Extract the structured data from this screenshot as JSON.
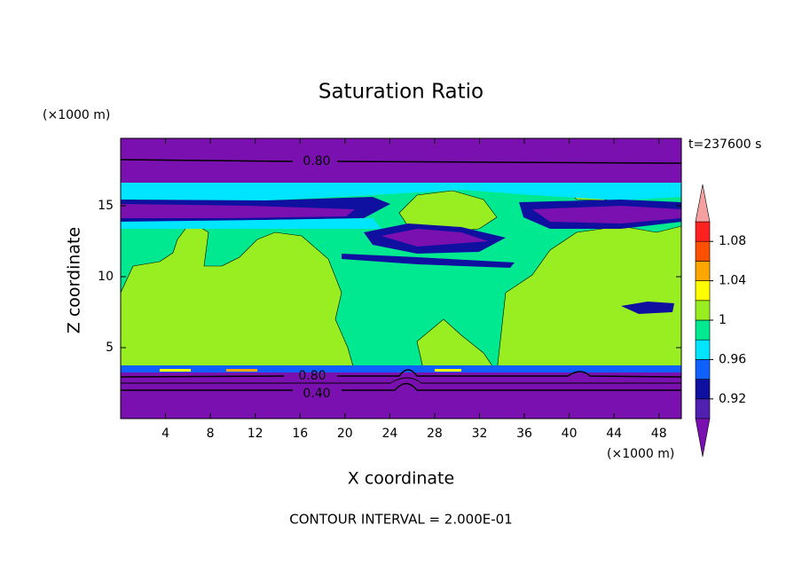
{
  "chart_data": {
    "type": "contour",
    "title": "Saturation Ratio",
    "x_label": "X coordinate",
    "y_label": "Z coordinate",
    "x_unit": "(×1000 m)",
    "y_unit": "(×1000 m)",
    "time_label": "t=237600 s",
    "footer": "CONTOUR INTERVAL = 2.000E-01",
    "xlim": [
      0,
      50
    ],
    "xticks": [
      4,
      8,
      12,
      16,
      20,
      24,
      28,
      32,
      36,
      40,
      44,
      48
    ],
    "ylim": [
      0,
      19.75
    ],
    "yticks": [
      5,
      10,
      15
    ],
    "contour_labels": [
      "0.80",
      "0.80",
      "0.40"
    ],
    "colorbar": {
      "levels": [
        0.9,
        0.92,
        0.94,
        0.96,
        0.98,
        1,
        1.02,
        1.04,
        1.06,
        1.08,
        1.1
      ],
      "colors": [
        "#7a10b0",
        "#5020b0",
        "#1010a0",
        "#1060ff",
        "#00e5ff",
        "#00e890",
        "#99ee22",
        "#ffff00",
        "#ffa500",
        "#ff5000",
        "#ff2020",
        "#f5a0a0"
      ],
      "ticks": [
        0.92,
        0.96,
        1,
        1.04,
        1.08
      ]
    }
  }
}
